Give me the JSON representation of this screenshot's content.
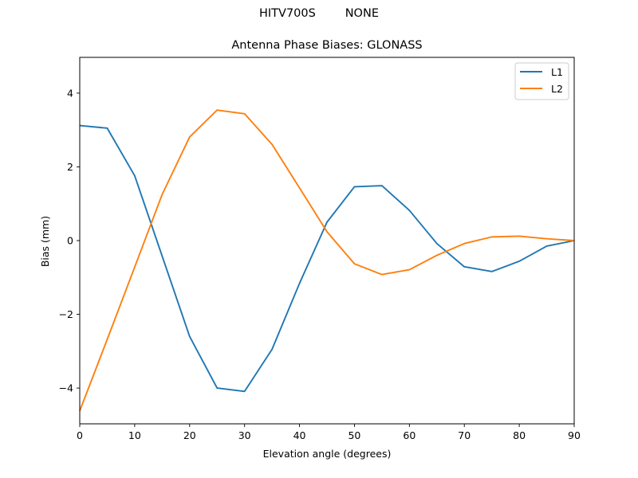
{
  "figure": {
    "suptitle_left": "HITV700S",
    "suptitle_right": "NONE",
    "suptitle": "HITV700S        NONE"
  },
  "chart_data": {
    "type": "line",
    "title": "Antenna Phase Biases: GLONASS",
    "suptitle": "HITV700S        NONE",
    "xlabel": "Elevation angle (degrees)",
    "ylabel": "Bias (mm)",
    "xlim": [
      0,
      90
    ],
    "ylim": [
      -4.97,
      4.97
    ],
    "xticks": [
      0,
      10,
      20,
      30,
      40,
      50,
      60,
      70,
      80,
      90
    ],
    "xtick_labels": [
      "0",
      "10",
      "20",
      "30",
      "40",
      "50",
      "60",
      "70",
      "80",
      "90"
    ],
    "yticks": [
      -4,
      -2,
      0,
      2,
      4
    ],
    "ytick_labels": [
      "−4",
      "−2",
      "0",
      "2",
      "4"
    ],
    "grid": false,
    "legend_position": "upper right",
    "x": [
      0,
      5,
      10,
      15,
      20,
      25,
      30,
      35,
      40,
      45,
      50,
      55,
      60,
      65,
      70,
      75,
      80,
      85,
      90
    ],
    "series": [
      {
        "name": "L1",
        "color": "#1f77b4",
        "values": [
          3.12,
          3.05,
          1.76,
          -0.42,
          -2.6,
          -4.0,
          -4.09,
          -2.95,
          -1.16,
          0.5,
          1.46,
          1.49,
          0.82,
          -0.08,
          -0.71,
          -0.84,
          -0.56,
          -0.15,
          0.0
        ]
      },
      {
        "name": "L2",
        "color": "#ff7f0e",
        "values": [
          -4.62,
          -2.68,
          -0.72,
          1.25,
          2.81,
          3.54,
          3.44,
          2.61,
          1.43,
          0.24,
          -0.63,
          -0.92,
          -0.79,
          -0.4,
          -0.08,
          0.1,
          0.12,
          0.05,
          0.0
        ]
      }
    ]
  }
}
